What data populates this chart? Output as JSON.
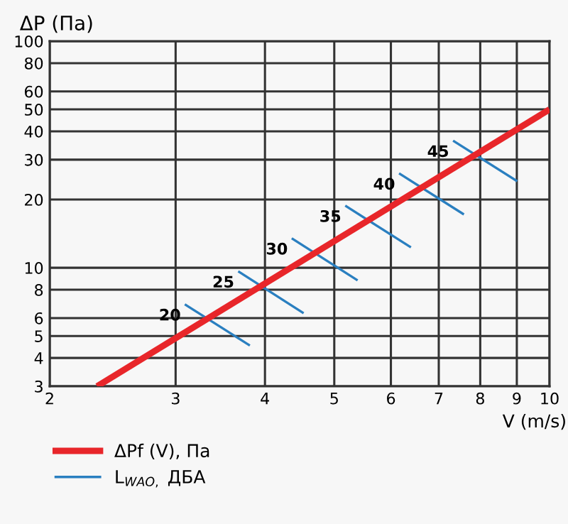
{
  "chart_data": {
    "type": "line",
    "xlabel": "V (m/s)",
    "ylabel": "ΔP (Па)",
    "log": "xy",
    "grid": true,
    "legend": "bottom left",
    "line_style": "solid",
    "marker": "none",
    "xlim": [
      2,
      10
    ],
    "xticks": [
      2,
      3,
      4,
      5,
      6,
      7,
      8,
      9,
      10
    ],
    "ylim": [
      3,
      100
    ],
    "yticks": [
      3,
      4,
      5,
      6,
      8,
      10,
      20,
      30,
      40,
      50,
      60,
      80,
      100
    ],
    "series": [
      {
        "name": "ΔPf (V), Па",
        "color": "#e8262a",
        "x": [
          2.33,
          10
        ],
        "values": [
          3,
          50
        ]
      },
      {
        "name": "L$_{WAO,}$ ДБА",
        "color": "#2a7fc0",
        "x": [
          3.09,
          3.81
        ],
        "values": [
          6.9,
          4.54
        ]
      },
      {
        "color": "#2a7fc0",
        "x": [
          3.67,
          4.53
        ],
        "values": [
          9.65,
          6.3
        ]
      },
      {
        "color": "#2a7fc0",
        "x": [
          4.36,
          5.39
        ],
        "values": [
          13.5,
          8.8
        ]
      },
      {
        "color": "#2a7fc0",
        "x": [
          5.18,
          6.4
        ],
        "values": [
          18.8,
          12.3
        ]
      },
      {
        "color": "#2a7fc0",
        "x": [
          6.16,
          7.59
        ],
        "values": [
          26.1,
          17.2
        ]
      },
      {
        "color": "#2a7fc0",
        "x": [
          7.33,
          9.01
        ],
        "values": [
          36.4,
          24.1
        ]
      }
    ],
    "annotations": [
      {
        "text": "20",
        "x": 3.09,
        "y": 6.9
      },
      {
        "text": "25",
        "x": 3.67,
        "y": 9.65
      },
      {
        "text": "30",
        "x": 4.36,
        "y": 13.5
      },
      {
        "text": "35",
        "x": 5.18,
        "y": 18.8
      },
      {
        "text": "40",
        "x": 6.16,
        "y": 26.1
      },
      {
        "text": "45",
        "x": 7.33,
        "y": 36.4
      }
    ]
  }
}
